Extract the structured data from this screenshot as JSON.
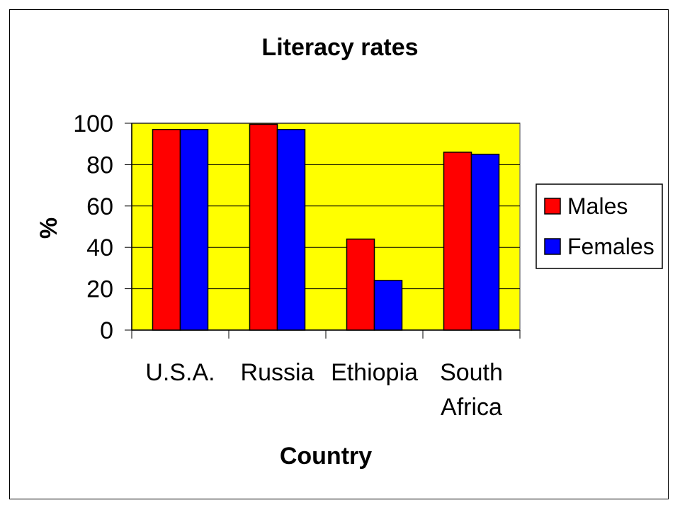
{
  "chart_data": {
    "type": "bar",
    "title": "Literacy rates",
    "xlabel": "Country",
    "ylabel": "%",
    "categories": [
      [
        "U.S.A."
      ],
      [
        "Russia"
      ],
      [
        "Ethiopia"
      ],
      [
        "South",
        "Africa"
      ]
    ],
    "series": [
      {
        "name": "Males",
        "color": "#ff0000",
        "values": [
          97,
          99.5,
          44,
          86
        ]
      },
      {
        "name": "Females",
        "color": "#0000ff",
        "values": [
          97,
          97,
          24,
          85
        ]
      }
    ],
    "ylim": [
      0,
      100
    ],
    "yticks": [
      0,
      20,
      40,
      60,
      80,
      100
    ],
    "grid": true,
    "plot_background": "#ffff00",
    "legend": "right"
  }
}
